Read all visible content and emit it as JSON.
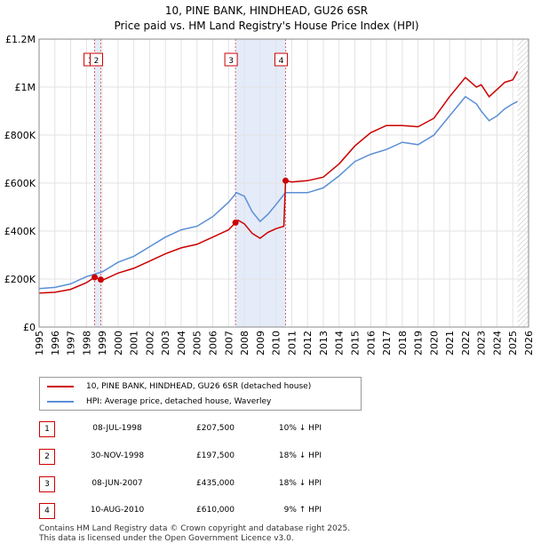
{
  "title_line1": "10, PINE BANK, HINDHEAD, GU26 6SR",
  "title_line2": "Price paid vs. HM Land Registry's House Price Index (HPI)",
  "chart_data": {
    "type": "line",
    "title": "10, PINE BANK, HINDHEAD, GU26 6SR — Price paid vs. HM Land Registry's House Price Index (HPI)",
    "xlabel": "",
    "ylabel": "",
    "xlim": [
      1995,
      2026
    ],
    "ylim": [
      0,
      1200000
    ],
    "x_ticks": [
      "1995",
      "1996",
      "1997",
      "1998",
      "1999",
      "2000",
      "2001",
      "2002",
      "2003",
      "2004",
      "2005",
      "2006",
      "2007",
      "2008",
      "2009",
      "2010",
      "2011",
      "2012",
      "2013",
      "2014",
      "2015",
      "2016",
      "2017",
      "2018",
      "2019",
      "2020",
      "2021",
      "2022",
      "2023",
      "2024",
      "2025",
      "2026"
    ],
    "y_ticks": [
      {
        "value": 0,
        "label": "£0"
      },
      {
        "value": 200000,
        "label": "£200K"
      },
      {
        "value": 400000,
        "label": "£400K"
      },
      {
        "value": 600000,
        "label": "£600K"
      },
      {
        "value": 800000,
        "label": "£800K"
      },
      {
        "value": 1000000,
        "label": "£1M"
      },
      {
        "value": 1200000,
        "label": "£1.2M"
      }
    ],
    "grid": true,
    "series": [
      {
        "name": "10, PINE BANK, HINDHEAD, GU26 6SR (detached house)",
        "color": "#cc0000",
        "points": [
          [
            1995,
            142000
          ],
          [
            1996,
            145000
          ],
          [
            1997,
            157000
          ],
          [
            1998,
            185000
          ],
          [
            1998.52,
            207500
          ],
          [
            1998.91,
            197500
          ],
          [
            1999,
            195000
          ],
          [
            2000,
            225000
          ],
          [
            2001,
            245000
          ],
          [
            2002,
            275000
          ],
          [
            2003,
            305000
          ],
          [
            2004,
            330000
          ],
          [
            2005,
            345000
          ],
          [
            2006,
            375000
          ],
          [
            2007,
            405000
          ],
          [
            2007.44,
            435000
          ],
          [
            2007.6,
            445000
          ],
          [
            2008,
            430000
          ],
          [
            2008.5,
            390000
          ],
          [
            2009,
            370000
          ],
          [
            2009.5,
            395000
          ],
          [
            2010,
            410000
          ],
          [
            2010.5,
            420000
          ],
          [
            2010.61,
            610000
          ],
          [
            2011,
            605000
          ],
          [
            2012,
            610000
          ],
          [
            2013,
            625000
          ],
          [
            2014,
            680000
          ],
          [
            2015,
            755000
          ],
          [
            2016,
            810000
          ],
          [
            2017,
            840000
          ],
          [
            2018,
            840000
          ],
          [
            2019,
            835000
          ],
          [
            2020,
            870000
          ],
          [
            2021,
            960000
          ],
          [
            2022,
            1040000
          ],
          [
            2022.7,
            1000000
          ],
          [
            2023,
            1010000
          ],
          [
            2023.5,
            960000
          ],
          [
            2024,
            990000
          ],
          [
            2024.5,
            1020000
          ],
          [
            2025,
            1030000
          ],
          [
            2025.3,
            1065000
          ]
        ]
      },
      {
        "name": "HPI: Average price, detached house, Waverley",
        "color": "#5b8fd6",
        "points": [
          [
            1995,
            160000
          ],
          [
            1996,
            165000
          ],
          [
            1997,
            180000
          ],
          [
            1998,
            210000
          ],
          [
            1999,
            230000
          ],
          [
            2000,
            270000
          ],
          [
            2001,
            295000
          ],
          [
            2002,
            335000
          ],
          [
            2003,
            375000
          ],
          [
            2004,
            405000
          ],
          [
            2005,
            420000
          ],
          [
            2006,
            460000
          ],
          [
            2007,
            520000
          ],
          [
            2007.5,
            560000
          ],
          [
            2008,
            545000
          ],
          [
            2008.5,
            480000
          ],
          [
            2009,
            440000
          ],
          [
            2009.5,
            470000
          ],
          [
            2010,
            510000
          ],
          [
            2010.6,
            560000
          ],
          [
            2011,
            560000
          ],
          [
            2012,
            560000
          ],
          [
            2013,
            580000
          ],
          [
            2014,
            630000
          ],
          [
            2015,
            690000
          ],
          [
            2016,
            720000
          ],
          [
            2017,
            740000
          ],
          [
            2018,
            770000
          ],
          [
            2019,
            760000
          ],
          [
            2020,
            800000
          ],
          [
            2021,
            880000
          ],
          [
            2022,
            960000
          ],
          [
            2022.7,
            930000
          ],
          [
            2023,
            900000
          ],
          [
            2023.5,
            860000
          ],
          [
            2024,
            880000
          ],
          [
            2024.5,
            910000
          ],
          [
            2025,
            930000
          ],
          [
            2025.3,
            940000
          ]
        ]
      }
    ],
    "transactions": [
      {
        "id": "1",
        "x": 1998.52,
        "price": 207500
      },
      {
        "id": "2",
        "x": 1998.91,
        "price": 197500
      },
      {
        "id": "3",
        "x": 2007.44,
        "price": 435000
      },
      {
        "id": "4",
        "x": 2010.61,
        "price": 610000
      }
    ],
    "shaded_ranges": [
      [
        1998.52,
        1998.91
      ],
      [
        2007.44,
        2010.61
      ]
    ],
    "future_hatch_from": 2025.3
  },
  "legend": {
    "property_label": "10, PINE BANK, HINDHEAD, GU26 6SR (detached house)",
    "hpi_label": "HPI: Average price, detached house, Waverley",
    "property_color": "#cc0000",
    "hpi_color": "#5b8fd6"
  },
  "table": [
    {
      "num": "1",
      "date": "08-JUL-1998",
      "price": "£207,500",
      "hpi": "10% ↓ HPI"
    },
    {
      "num": "2",
      "date": "30-NOV-1998",
      "price": "£197,500",
      "hpi": "18% ↓ HPI"
    },
    {
      "num": "3",
      "date": "08-JUN-2007",
      "price": "£435,000",
      "hpi": "18% ↓ HPI"
    },
    {
      "num": "4",
      "date": "10-AUG-2010",
      "price": "£610,000",
      "hpi": "9% ↑ HPI"
    }
  ],
  "footer_line1": "Contains HM Land Registry data © Crown copyright and database right 2025.",
  "footer_line2": "This data is licensed under the Open Government Licence v3.0."
}
